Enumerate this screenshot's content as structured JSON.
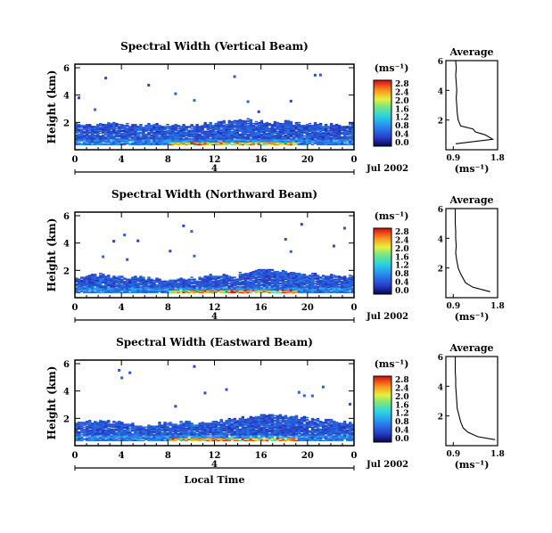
{
  "chart_data": [
    {
      "type": "heatmap",
      "title": "Spectral Width (Vertical Beam)",
      "ylabel": "Height (km)",
      "yticks": [
        "6",
        "4",
        "2"
      ],
      "ylim": [
        0,
        6
      ],
      "xticks": [
        "0",
        "4",
        "8",
        "12",
        "16",
        "20",
        "0"
      ],
      "xlim": [
        0,
        24
      ],
      "day_label": "4",
      "date_label": "Jul 2002",
      "colorbar": {
        "unit": "(ms⁻¹)",
        "ticks": [
          "2.8",
          "2.4",
          "2.0",
          "1.6",
          "1.2",
          "0.8",
          "0.4",
          "0.0"
        ],
        "range": [
          0,
          2.8
        ]
      },
      "layer": {
        "top_km": [
          1.8,
          1.8,
          1.9,
          1.9,
          1.8,
          1.8,
          1.8,
          1.8,
          1.8,
          1.8,
          1.8,
          1.9,
          2.0,
          2.1,
          2.2,
          2.1,
          2.0,
          2.0,
          2.0,
          1.9,
          1.9,
          1.8,
          1.8,
          1.8
        ],
        "peak_width": 2.6
      },
      "average": {
        "title": "Average",
        "xlabel": "(ms⁻¹)",
        "xticks": [
          "0.9",
          "1.8"
        ],
        "xlim": [
          0.9,
          1.8
        ],
        "yticks": [
          "6",
          "4",
          "2"
        ],
        "ylim": [
          0,
          6
        ],
        "profile": [
          [
            0.4,
            0.95
          ],
          [
            0.7,
            1.7
          ],
          [
            1.0,
            1.55
          ],
          [
            1.2,
            1.35
          ],
          [
            1.4,
            1.3
          ],
          [
            1.6,
            1.05
          ],
          [
            2.0,
            1.0
          ],
          [
            2.5,
            0.98
          ],
          [
            3.0,
            0.97
          ],
          [
            3.5,
            0.96
          ],
          [
            4.0,
            0.97
          ],
          [
            4.5,
            0.96
          ],
          [
            5.0,
            0.95
          ],
          [
            5.5,
            0.96
          ],
          [
            6.0,
            0.95
          ]
        ]
      }
    },
    {
      "type": "heatmap",
      "title": "Spectral Width (Northward Beam)",
      "ylabel": "Height (km)",
      "yticks": [
        "6",
        "4",
        "2"
      ],
      "ylim": [
        0,
        6
      ],
      "xticks": [
        "0",
        "4",
        "8",
        "12",
        "16",
        "20",
        "0"
      ],
      "xlim": [
        0,
        24
      ],
      "day_label": "4",
      "date_label": "Jul 2002",
      "colorbar": {
        "unit": "(ms⁻¹)",
        "ticks": [
          "2.8",
          "2.4",
          "2.0",
          "1.6",
          "1.2",
          "0.8",
          "0.4",
          "0.0"
        ],
        "range": [
          0,
          2.8
        ]
      },
      "layer": {
        "top_km": [
          1.5,
          1.6,
          1.7,
          1.6,
          1.5,
          1.5,
          1.4,
          1.3,
          1.3,
          1.4,
          1.4,
          1.6,
          1.6,
          1.5,
          1.8,
          2.0,
          2.0,
          1.9,
          1.8,
          1.7,
          1.7,
          1.6,
          1.6,
          1.6
        ],
        "peak_width": 2.6
      },
      "average": {
        "title": "Average",
        "xlabel": "(ms⁻¹)",
        "xticks": [
          "0.9",
          "1.8"
        ],
        "xlim": [
          0.9,
          1.8
        ],
        "yticks": [
          "6",
          "4",
          "2"
        ],
        "ylim": [
          0,
          6
        ],
        "profile": [
          [
            0.4,
            1.65
          ],
          [
            0.7,
            1.3
          ],
          [
            1.0,
            1.15
          ],
          [
            1.3,
            1.1
          ],
          [
            1.6,
            1.05
          ],
          [
            2.0,
            1.0
          ],
          [
            2.5,
            0.97
          ],
          [
            3.0,
            0.95
          ],
          [
            3.5,
            0.96
          ],
          [
            4.0,
            0.95
          ],
          [
            4.5,
            0.95
          ],
          [
            5.0,
            0.94
          ],
          [
            6.0,
            0.94
          ]
        ]
      }
    },
    {
      "type": "heatmap",
      "title": "Spectral Width (Eastward Beam)",
      "ylabel": "Height (km)",
      "yticks": [
        "6",
        "4",
        "2"
      ],
      "ylim": [
        0,
        6
      ],
      "xticks": [
        "0",
        "4",
        "8",
        "12",
        "16",
        "20",
        "0"
      ],
      "xlim": [
        0,
        24
      ],
      "day_label": "4",
      "date_label": "Jul 2002",
      "xlabel": "Local Time",
      "colorbar": {
        "unit": "(ms⁻¹)",
        "ticks": [
          "2.8",
          "2.4",
          "2.0",
          "1.6",
          "1.2",
          "0.8",
          "0.4",
          "0.0"
        ],
        "range": [
          0,
          2.8
        ]
      },
      "layer": {
        "top_km": [
          1.7,
          1.8,
          1.8,
          1.7,
          1.6,
          1.5,
          1.5,
          1.6,
          1.6,
          1.7,
          1.6,
          1.7,
          1.8,
          1.9,
          2.0,
          2.2,
          2.3,
          2.2,
          2.2,
          2.0,
          1.9,
          1.8,
          1.7,
          1.7
        ],
        "peak_width": 2.4
      },
      "average": {
        "title": "Average",
        "xlabel": "(ms⁻¹)",
        "xticks": [
          "0.9",
          "1.8"
        ],
        "xlim": [
          0.9,
          1.8
        ],
        "yticks": [
          "6",
          "4",
          "2"
        ],
        "ylim": [
          0,
          6
        ],
        "profile": [
          [
            0.4,
            1.75
          ],
          [
            0.6,
            1.4
          ],
          [
            0.9,
            1.2
          ],
          [
            1.2,
            1.1
          ],
          [
            1.6,
            1.05
          ],
          [
            2.0,
            1.02
          ],
          [
            2.5,
            0.98
          ],
          [
            3.0,
            0.97
          ],
          [
            3.5,
            0.96
          ],
          [
            4.0,
            0.95
          ],
          [
            4.5,
            0.95
          ],
          [
            5.0,
            0.94
          ],
          [
            6.0,
            0.94
          ]
        ]
      }
    }
  ]
}
